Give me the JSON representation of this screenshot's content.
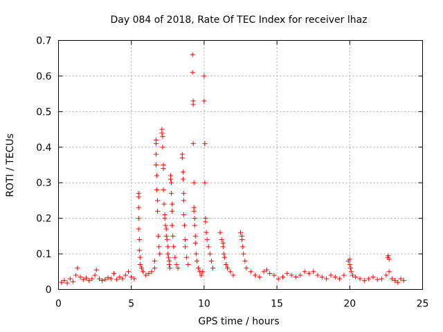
{
  "chart_data": {
    "type": "scatter",
    "title": "Day 084 of 2018, Rate Of TEC Index for receiver lhaz",
    "xlabel": "GPS time / hours",
    "ylabel": "ROTI / TECUs",
    "xlim": [
      0,
      25
    ],
    "ylim": [
      0,
      0.7
    ],
    "x_ticks": [
      "0",
      "5",
      "10",
      "15",
      "20",
      "25"
    ],
    "y_ticks": [
      "0",
      "0.1",
      "0.2",
      "0.3",
      "0.4",
      "0.5",
      "0.6",
      "0.7"
    ],
    "grid": true,
    "marker": "+",
    "color": "#ff0000",
    "series": [
      {
        "name": "ROTI",
        "x": [
          0.2,
          0.4,
          0.6,
          0.8,
          1.0,
          1.2,
          1.3,
          1.5,
          1.7,
          1.9,
          2.1,
          2.3,
          2.5,
          2.6,
          2.8,
          3.0,
          3.2,
          3.4,
          3.6,
          3.8,
          4.0,
          4.2,
          4.4,
          4.6,
          4.8,
          5.0,
          5.2,
          5.5,
          5.5,
          5.5,
          5.5,
          5.5,
          5.55,
          5.55,
          5.6,
          5.6,
          5.7,
          5.8,
          6.0,
          6.2,
          6.4,
          6.6,
          6.6,
          6.7,
          6.7,
          6.7,
          6.7,
          6.75,
          6.75,
          6.8,
          6.8,
          6.85,
          6.9,
          6.95,
          7.1,
          7.1,
          7.15,
          7.15,
          7.2,
          7.2,
          7.2,
          7.25,
          7.3,
          7.3,
          7.35,
          7.4,
          7.4,
          7.45,
          7.5,
          7.5,
          7.55,
          7.6,
          7.6,
          7.65,
          7.7,
          7.7,
          7.75,
          7.75,
          7.8,
          7.8,
          7.8,
          7.85,
          7.9,
          8.0,
          8.1,
          8.2,
          8.5,
          8.5,
          8.55,
          8.55,
          8.6,
          8.6,
          8.6,
          8.65,
          8.7,
          8.7,
          8.8,
          8.9,
          9.2,
          9.2,
          9.25,
          9.25,
          9.25,
          9.3,
          9.3,
          9.3,
          9.35,
          9.35,
          9.4,
          9.4,
          9.45,
          9.5,
          9.6,
          9.7,
          9.8,
          9.9,
          10.0,
          10.0,
          10.05,
          10.05,
          10.1,
          10.1,
          10.15,
          10.2,
          10.3,
          10.4,
          10.5,
          10.6,
          11.1,
          11.2,
          11.3,
          11.3,
          11.35,
          11.4,
          11.5,
          11.6,
          11.8,
          12.0,
          12.5,
          12.6,
          12.6,
          12.65,
          12.7,
          12.8,
          12.9,
          13.2,
          13.5,
          13.8,
          14.1,
          14.3,
          14.5,
          14.8,
          15.1,
          15.4,
          15.7,
          16.0,
          16.3,
          16.6,
          16.9,
          17.2,
          17.5,
          17.8,
          18.1,
          18.4,
          18.7,
          19.0,
          19.3,
          19.6,
          19.9,
          20.0,
          20.0,
          20.05,
          20.1,
          20.2,
          20.4,
          20.7,
          21.0,
          21.3,
          21.6,
          21.9,
          22.2,
          22.5,
          22.6,
          22.65,
          22.7,
          22.7,
          22.9,
          23.1,
          23.3,
          23.5,
          23.7
        ],
        "y": [
          0.02,
          0.025,
          0.018,
          0.03,
          0.022,
          0.04,
          0.06,
          0.035,
          0.028,
          0.032,
          0.025,
          0.03,
          0.04,
          0.055,
          0.03,
          0.025,
          0.028,
          0.033,
          0.03,
          0.045,
          0.028,
          0.035,
          0.03,
          0.04,
          0.05,
          0.035,
          0.03,
          0.27,
          0.26,
          0.23,
          0.2,
          0.17,
          0.14,
          0.11,
          0.09,
          0.07,
          0.06,
          0.05,
          0.04,
          0.045,
          0.05,
          0.06,
          0.08,
          0.42,
          0.41,
          0.38,
          0.35,
          0.32,
          0.28,
          0.25,
          0.22,
          0.15,
          0.12,
          0.1,
          0.45,
          0.44,
          0.43,
          0.4,
          0.35,
          0.34,
          0.28,
          0.24,
          0.21,
          0.2,
          0.18,
          0.17,
          0.15,
          0.14,
          0.12,
          0.1,
          0.09,
          0.08,
          0.07,
          0.06,
          0.32,
          0.31,
          0.3,
          0.27,
          0.24,
          0.22,
          0.18,
          0.15,
          0.12,
          0.09,
          0.07,
          0.06,
          0.38,
          0.37,
          0.33,
          0.31,
          0.27,
          0.25,
          0.21,
          0.18,
          0.14,
          0.12,
          0.09,
          0.07,
          0.66,
          0.61,
          0.53,
          0.52,
          0.41,
          0.3,
          0.23,
          0.22,
          0.2,
          0.18,
          0.15,
          0.13,
          0.1,
          0.08,
          0.06,
          0.05,
          0.04,
          0.05,
          0.6,
          0.53,
          0.41,
          0.3,
          0.2,
          0.19,
          0.16,
          0.14,
          0.12,
          0.1,
          0.08,
          0.06,
          0.16,
          0.14,
          0.13,
          0.12,
          0.1,
          0.09,
          0.07,
          0.06,
          0.05,
          0.04,
          0.16,
          0.15,
          0.14,
          0.12,
          0.1,
          0.08,
          0.06,
          0.05,
          0.04,
          0.035,
          0.05,
          0.055,
          0.045,
          0.04,
          0.03,
          0.035,
          0.045,
          0.04,
          0.035,
          0.04,
          0.05,
          0.045,
          0.05,
          0.04,
          0.035,
          0.03,
          0.04,
          0.035,
          0.03,
          0.04,
          0.08,
          0.085,
          0.07,
          0.06,
          0.05,
          0.04,
          0.035,
          0.03,
          0.025,
          0.03,
          0.035,
          0.028,
          0.03,
          0.04,
          0.09,
          0.095,
          0.085,
          0.05,
          0.03,
          0.025,
          0.02,
          0.03,
          0.025
        ]
      }
    ]
  }
}
